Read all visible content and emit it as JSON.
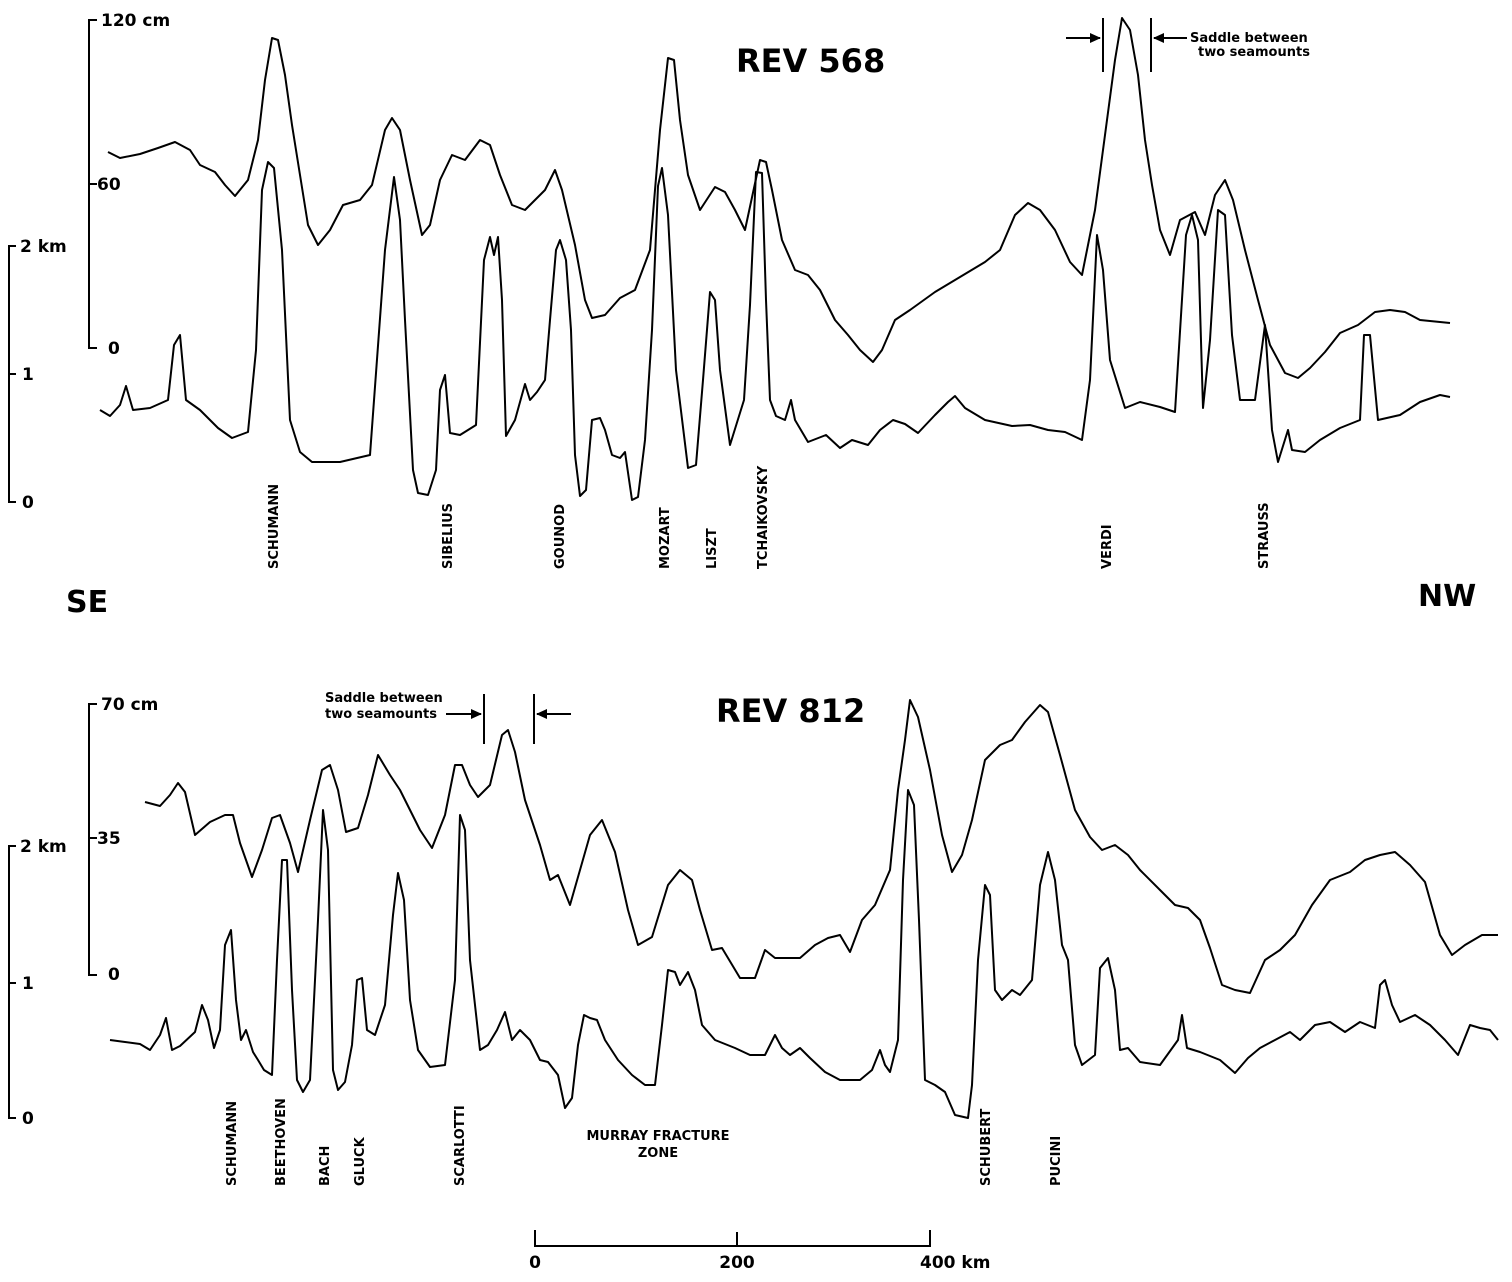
{
  "directions": {
    "left": "SE",
    "right": "NW"
  },
  "panels": [
    {
      "title": "REV 568",
      "altimeter_axis": {
        "ticks": [
          "120 cm",
          "60",
          "0"
        ]
      },
      "depth_axis": {
        "ticks": [
          "2 km",
          "1",
          "0"
        ]
      },
      "annotation": {
        "line1": "Saddle between",
        "line2": "two seamounts"
      },
      "seamounts": [
        "SCHUMANN",
        "SIBELIUS",
        "GOUNOD",
        "MOZART",
        "LISZT",
        "TCHAIKOVSKY",
        "VERDI",
        "STRAUSS"
      ]
    },
    {
      "title": "REV 812",
      "altimeter_axis": {
        "ticks": [
          "70 cm",
          "35",
          "0"
        ]
      },
      "depth_axis": {
        "ticks": [
          "2 km",
          "1",
          "0"
        ]
      },
      "annotation": {
        "line1": "Saddle between",
        "line2": "two seamounts"
      },
      "seamounts": [
        "SCHUMANN",
        "BEETHOVEN",
        "BACH",
        "GLUCK",
        "SCARLOTTI",
        "SCHUBERT",
        "PUCINI"
      ],
      "feature": {
        "line1": "MURRAY FRACTURE",
        "line2": "ZONE"
      }
    }
  ],
  "scale_bar": {
    "ticks": [
      "0",
      "200",
      "400 km"
    ]
  }
}
